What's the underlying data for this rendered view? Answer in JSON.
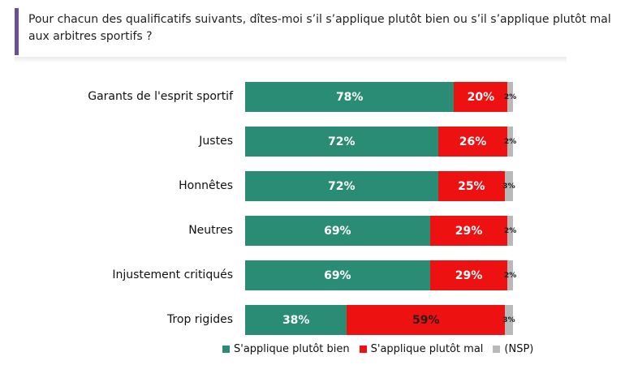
{
  "question": "Pour chacun des qualificatifs suivants, dîtes-moi s’il s’applique plutôt bien ou s’il s’applique plutôt mal aux arbitres sportifs ?",
  "colors": {
    "bien": "#2a8c74",
    "mal": "#ee1111",
    "nsp": "#b9b9b9",
    "accent": "#6b4f94"
  },
  "chart_data": {
    "type": "bar",
    "orientation": "horizontal",
    "stacked": true,
    "categories": [
      "Garants de l'esprit sportif",
      "Justes",
      "Honnêtes",
      "Neutres",
      "Injustement critiqués",
      "Trop rigides"
    ],
    "series": [
      {
        "name": "S'applique plutôt bien",
        "values": [
          78,
          72,
          72,
          69,
          69,
          38
        ],
        "labels": [
          "78%",
          "72%",
          "72%",
          "69%",
          "69%",
          "38%"
        ]
      },
      {
        "name": "S'applique plutôt mal",
        "values": [
          20,
          26,
          25,
          29,
          29,
          59
        ],
        "labels": [
          "20%",
          "26%",
          "25%",
          "29%",
          "29%",
          "59%"
        ]
      },
      {
        "name": "(NSP)",
        "values": [
          2,
          2,
          3,
          2,
          2,
          3
        ],
        "labels": [
          "2%",
          "2%",
          "3%",
          "2%",
          "2%",
          "3%"
        ]
      }
    ],
    "xlim": [
      0,
      100
    ],
    "legend": "bottom"
  }
}
